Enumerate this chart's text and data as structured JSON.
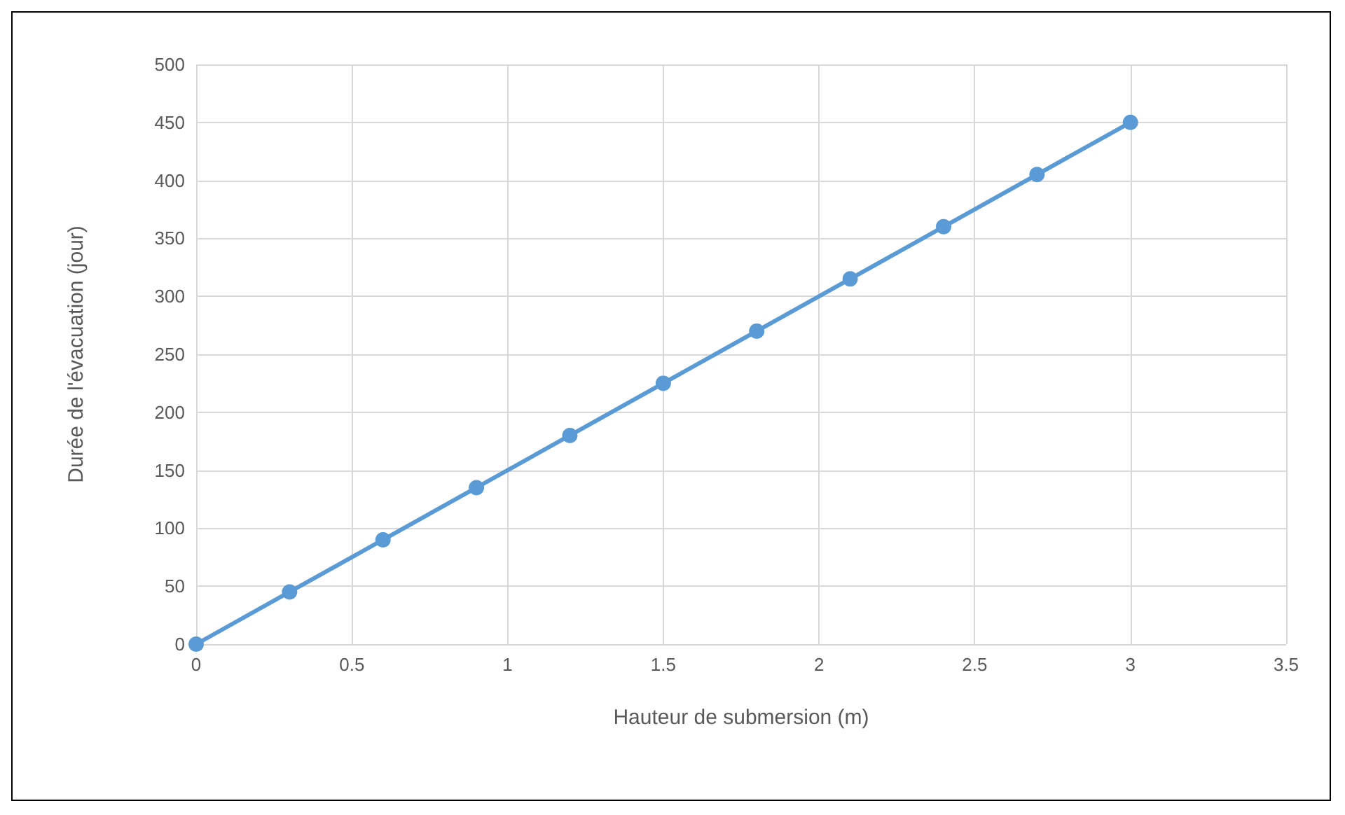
{
  "chart_data": {
    "type": "line",
    "xlabel": "Hauteur de submersion (m)",
    "ylabel": "Durée de l'évacuation (jour)",
    "x": [
      0,
      0.3,
      0.6,
      0.9,
      1.2,
      1.5,
      1.8,
      2.1,
      2.4,
      2.7,
      3
    ],
    "series": [
      {
        "color": "#5b9bd5",
        "values": [
          0,
          45,
          90,
          135,
          180,
          225,
          270,
          315,
          360,
          405,
          450
        ]
      }
    ],
    "xlim": [
      0,
      3.5
    ],
    "xticks": [
      0,
      0.5,
      1,
      1.5,
      2,
      2.5,
      3,
      3.5
    ],
    "ylim": [
      0,
      500
    ],
    "yticks": [
      0,
      50,
      100,
      150,
      200,
      250,
      300,
      350,
      400,
      450,
      500
    ],
    "grid": true,
    "marker": "circle",
    "line_style": "solid"
  }
}
